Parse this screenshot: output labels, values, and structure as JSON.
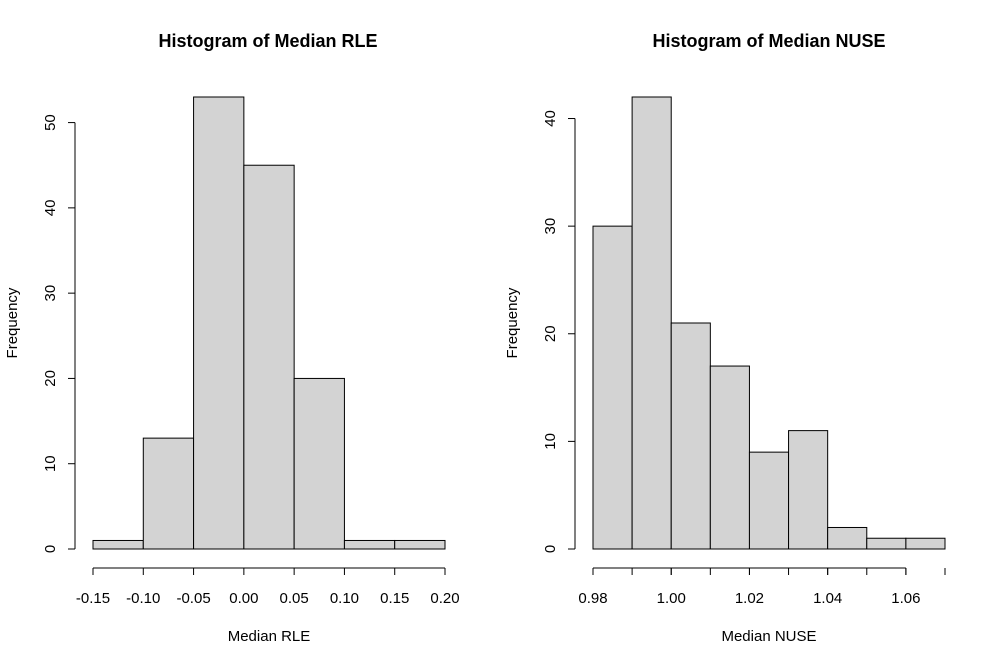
{
  "chart_data": [
    {
      "type": "bar",
      "title": "Histogram of Median RLE",
      "xlabel": "Median RLE",
      "ylabel": "Frequency",
      "bins": [
        {
          "from": -0.15,
          "to": -0.1,
          "count": 1
        },
        {
          "from": -0.1,
          "to": -0.05,
          "count": 13
        },
        {
          "from": -0.05,
          "to": 0.0,
          "count": 53
        },
        {
          "from": 0.0,
          "to": 0.05,
          "count": 45
        },
        {
          "from": 0.05,
          "to": 0.1,
          "count": 20
        },
        {
          "from": 0.1,
          "to": 0.15,
          "count": 1
        },
        {
          "from": 0.15,
          "to": 0.2,
          "count": 1
        }
      ],
      "xlim": [
        -0.15,
        0.2
      ],
      "ylim": [
        0,
        53
      ],
      "x_ticks": [
        -0.15,
        -0.1,
        -0.05,
        0.0,
        0.05,
        0.1,
        0.15,
        0.2
      ],
      "x_tick_labels": [
        "-0.15",
        "-0.10",
        "-0.05",
        "0.00",
        "0.05",
        "0.10",
        "0.15",
        "0.20"
      ],
      "y_ticks": [
        0,
        10,
        20,
        30,
        40,
        50
      ],
      "y_tick_labels": [
        "0",
        "10",
        "20",
        "30",
        "40",
        "50"
      ],
      "grid": false
    },
    {
      "type": "bar",
      "title": "Histogram of Median NUSE",
      "xlabel": "Median NUSE",
      "ylabel": "Frequency",
      "bins": [
        {
          "from": 0.98,
          "to": 0.99,
          "count": 30
        },
        {
          "from": 0.99,
          "to": 1.0,
          "count": 42
        },
        {
          "from": 1.0,
          "to": 1.01,
          "count": 21
        },
        {
          "from": 1.01,
          "to": 1.02,
          "count": 17
        },
        {
          "from": 1.02,
          "to": 1.03,
          "count": 9
        },
        {
          "from": 1.03,
          "to": 1.04,
          "count": 11
        },
        {
          "from": 1.04,
          "to": 1.05,
          "count": 2
        },
        {
          "from": 1.05,
          "to": 1.06,
          "count": 1
        },
        {
          "from": 1.06,
          "to": 1.07,
          "count": 1
        }
      ],
      "xlim": [
        0.98,
        1.07
      ],
      "ylim": [
        0,
        42
      ],
      "x_ticks": [
        0.98,
        1.0,
        1.02,
        1.04,
        1.06
      ],
      "x_tick_labels": [
        "0.98",
        "1.00",
        "1.02",
        "1.04",
        "1.06"
      ],
      "x_minor_ticks": [
        0.98,
        0.99,
        1.0,
        1.01,
        1.02,
        1.03,
        1.04,
        1.05,
        1.06,
        1.07
      ],
      "y_ticks": [
        0,
        10,
        20,
        30,
        40
      ],
      "y_tick_labels": [
        "0",
        "10",
        "20",
        "30",
        "40"
      ],
      "grid": false
    }
  ]
}
